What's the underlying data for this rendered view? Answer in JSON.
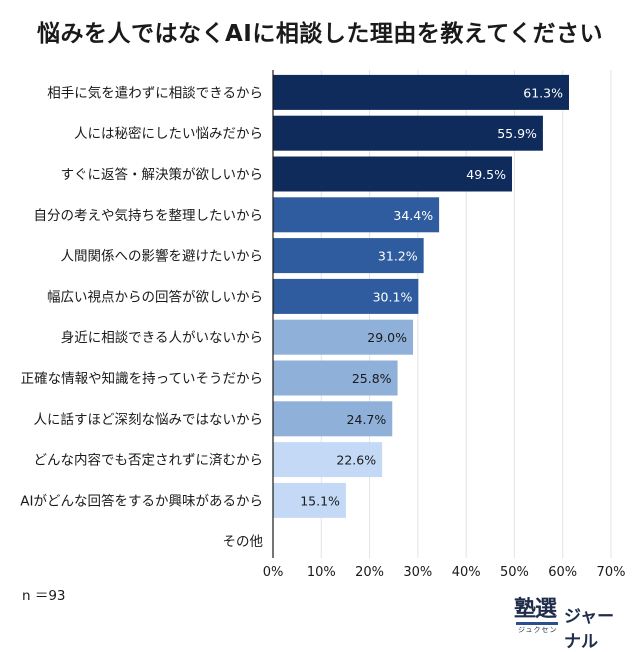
{
  "chart_data": {
    "type": "bar",
    "orientation": "horizontal",
    "title": "悩みを人ではなくAIに相談した理由を教えてください",
    "categories": [
      "相手に気を遣わずに相談できるから",
      "人には秘密にしたい悩みだから",
      "すぐに返答・解決策が欲しいから",
      "自分の考えや気持ちを整理したいから",
      "人間関係への影響を避けたいから",
      "幅広い視点からの回答が欲しいから",
      "身近に相談できる人がいないから",
      "正確な情報や知識を持っていそうだから",
      "人に話すほど深刻な悩みではないから",
      "どんな内容でも否定されずに済むから",
      "AIがどんな回答をするか興味があるから",
      "その他"
    ],
    "values": [
      61.3,
      55.9,
      49.5,
      34.4,
      31.2,
      30.1,
      29.0,
      25.8,
      24.7,
      22.6,
      15.1,
      0
    ],
    "value_labels": [
      "61.3%",
      "55.9%",
      "49.5%",
      "34.4%",
      "31.2%",
      "30.1%",
      "29.0%",
      "25.8%",
      "24.7%",
      "22.6%",
      "15.1%",
      ""
    ],
    "bar_colors": [
      "#0f2b5c",
      "#0f2b5c",
      "#0f2b5c",
      "#2e5c9e",
      "#2e5c9e",
      "#2e5c9e",
      "#8fb0d9",
      "#8fb0d9",
      "#8fb0d9",
      "#c4d9f5",
      "#c4d9f5",
      "#c4d9f5"
    ],
    "value_label_colors": [
      "#ffffff",
      "#ffffff",
      "#ffffff",
      "#ffffff",
      "#ffffff",
      "#ffffff",
      "#1a1a1a",
      "#1a1a1a",
      "#1a1a1a",
      "#1a1a1a",
      "#1a1a1a",
      "#1a1a1a"
    ],
    "xlim": [
      0,
      70
    ],
    "x_ticks": [
      0,
      10,
      20,
      30,
      40,
      50,
      60,
      70
    ],
    "x_tick_labels": [
      "0%",
      "10%",
      "20%",
      "30%",
      "40%",
      "50%",
      "60%",
      "70%"
    ],
    "grid": true,
    "xlabel": "",
    "ylabel": ""
  },
  "footnote": "n ＝93",
  "logo": {
    "kanji": "塾選",
    "ruby": "ジュクセン",
    "text": "ジャーナル"
  }
}
